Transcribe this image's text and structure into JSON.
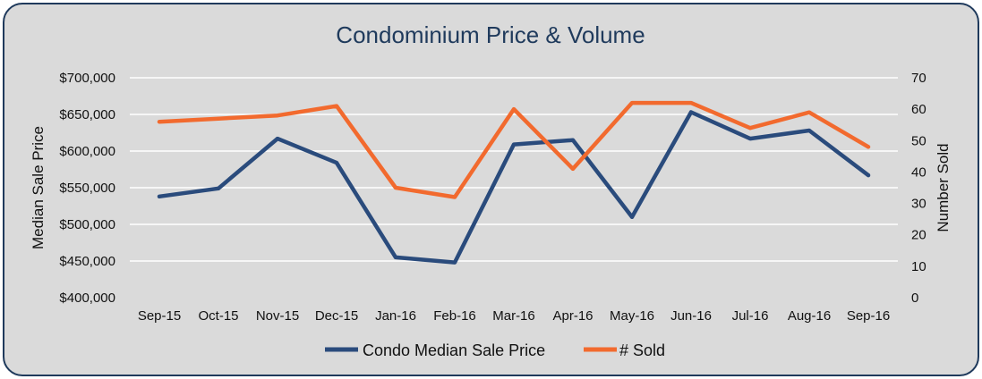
{
  "chart_data": {
    "type": "line",
    "title": "Condominium Price & Volume",
    "categories": [
      "Sep-15",
      "Oct-15",
      "Nov-15",
      "Dec-15",
      "Jan-16",
      "Feb-16",
      "Mar-16",
      "Apr-16",
      "May-16",
      "Jun-16",
      "Jul-16",
      "Aug-16",
      "Sep-16"
    ],
    "ylabel": "Median Sale Price",
    "y2label": "Number Sold",
    "ylim": [
      400000,
      700000
    ],
    "y2lim": [
      0,
      70
    ],
    "yticks": [
      400000,
      450000,
      500000,
      550000,
      600000,
      650000,
      700000
    ],
    "yticklabels": [
      "$400,000",
      "$450,000",
      "$500,000",
      "$550,000",
      "$600,000",
      "$650,000",
      "$700,000"
    ],
    "y2ticks": [
      0,
      10,
      20,
      30,
      40,
      50,
      60,
      70
    ],
    "y2ticklabels": [
      "0",
      "10",
      "20",
      "30",
      "40",
      "50",
      "60",
      "70"
    ],
    "grid": true,
    "legend_position": "bottom",
    "series": [
      {
        "name": "Condo Median Sale Price",
        "axis": "left",
        "color": "#2a4b7c",
        "values": [
          538000,
          549000,
          617000,
          584000,
          455000,
          448000,
          609000,
          615000,
          510000,
          653000,
          617000,
          628000,
          567000
        ]
      },
      {
        "name": "# Sold",
        "axis": "right",
        "color": "#f26a2e",
        "values": [
          56,
          57,
          58,
          61,
          35,
          32,
          60,
          41,
          62,
          62,
          54,
          59,
          48
        ]
      }
    ]
  }
}
